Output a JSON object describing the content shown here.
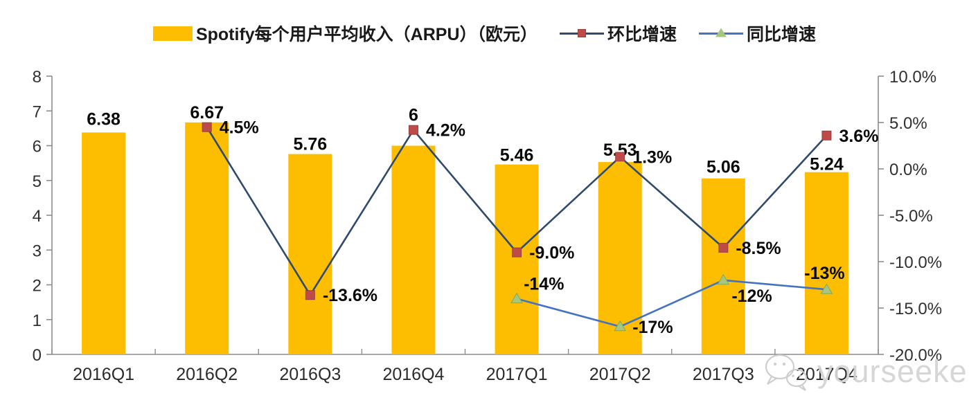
{
  "chart_data": {
    "type": "combo-bar-line",
    "title": "",
    "background": "#FFFFFF",
    "grid": false,
    "legend_position": "top",
    "categories": [
      "2016Q1",
      "2016Q2",
      "2016Q3",
      "2016Q4",
      "2017Q1",
      "2017Q2",
      "2017Q3",
      "2017Q4"
    ],
    "left_axis": {
      "min": 0,
      "max": 8,
      "tick_labels": [
        "0",
        "1",
        "2",
        "3",
        "4",
        "5",
        "6",
        "7",
        "8"
      ],
      "tick_values": [
        0,
        1,
        2,
        3,
        4,
        5,
        6,
        7,
        8
      ]
    },
    "right_axis": {
      "min": -20,
      "max": 10,
      "tick_labels": [
        "10.0%",
        "5.0%",
        "0.0%",
        "-5.0%",
        "-10.0%",
        "-15.0%",
        "-20.0%"
      ],
      "tick_values": [
        10,
        5,
        0,
        -5,
        -10,
        -15,
        -20
      ]
    },
    "series": [
      {
        "name": "Spotify每个用户平均收入（ARPU）（欧元）",
        "type": "bar",
        "axis": "left",
        "color": "#FDBE02",
        "values": [
          6.38,
          6.67,
          5.76,
          6,
          5.46,
          5.53,
          5.06,
          5.24
        ],
        "labels": [
          "6.38",
          "6.67",
          "5.76",
          "6",
          "5.46",
          "5.53",
          "5.06",
          "5.24"
        ],
        "label_dy": [
          -11,
          -6,
          -6,
          -36,
          -5,
          -9,
          -8,
          -3
        ]
      },
      {
        "name": "环比增速",
        "type": "line",
        "axis": "right",
        "color": "#2F4A6D",
        "marker": "square",
        "marker_color": "#BE4B48",
        "marker_edge": "#96403D",
        "values": [
          null,
          4.5,
          -13.6,
          4.2,
          -9.0,
          1.3,
          -8.5,
          3.6
        ],
        "labels": [
          null,
          "4.5%",
          "-13.6%",
          "4.2%",
          "-9.0%",
          "1.3%",
          "-8.5%",
          "3.6%"
        ],
        "label_pos": [
          null,
          "right",
          "right",
          "right",
          "right",
          "right",
          "right",
          "right"
        ]
      },
      {
        "name": "同比增速",
        "type": "line",
        "axis": "right",
        "color": "#4472C4",
        "marker": "triangle",
        "marker_color": "#A6C87E",
        "marker_edge": "#83A85A",
        "values": [
          null,
          null,
          null,
          null,
          -14,
          -17,
          -12,
          -13
        ],
        "labels": [
          null,
          null,
          null,
          null,
          "-14%",
          "-17%",
          "-12%",
          "-13%"
        ],
        "label_pos": [
          null,
          null,
          null,
          null,
          "above-right",
          "right",
          "below-right",
          "above"
        ]
      }
    ]
  },
  "watermark": {
    "text": "yourseeker",
    "icon": "wechat-icon"
  }
}
